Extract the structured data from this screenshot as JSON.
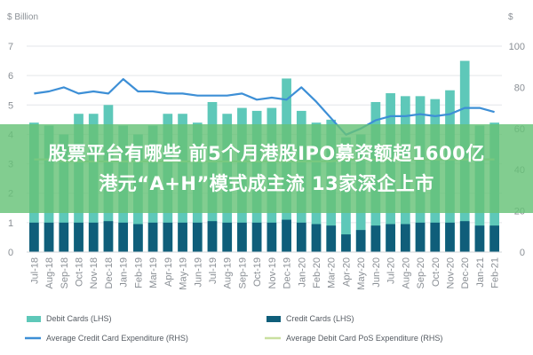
{
  "chart_data": {
    "type": "bar",
    "left_axis_unit": "$ Billion",
    "right_axis_unit": "$",
    "left_ylim": [
      0,
      7
    ],
    "right_ylim": [
      0,
      100
    ],
    "left_ticks": [
      "0",
      "1",
      "2",
      "3",
      "4",
      "5",
      "6",
      "7"
    ],
    "right_ticks": [
      "0",
      "20",
      "40",
      "60",
      "80",
      "100"
    ],
    "grid": true,
    "legend_position": "bottom",
    "categories": [
      "Jul-18",
      "Aug-18",
      "Sep-18",
      "Oct-18",
      "Nov-18",
      "Dec-18",
      "Jan-19",
      "Feb-19",
      "Mar-19",
      "Apr-19",
      "May-19",
      "Jun-19",
      "Jul-19",
      "Aug-19",
      "Sep-19",
      "Oct-19",
      "Nov-19",
      "Dec-19",
      "Jan-20",
      "Feb-20",
      "Mar-20",
      "Apr-20",
      "May-20",
      "Jun-20",
      "Jul-20",
      "Aug-20",
      "Sep-20",
      "Oct-20",
      "Nov-20",
      "Dec-20",
      "Jan-21",
      "Feb-21"
    ],
    "series": [
      {
        "name": "Debit Cards (LHS)",
        "axis": "left",
        "kind": "bar",
        "color": "#5ec8b9",
        "values": [
          4.4,
          4.3,
          4.0,
          4.7,
          4.7,
          5.0,
          4.3,
          4.0,
          4.3,
          4.7,
          4.7,
          4.4,
          5.1,
          4.7,
          4.9,
          4.8,
          4.9,
          5.9,
          4.8,
          4.4,
          4.5,
          3.9,
          4.0,
          5.1,
          5.4,
          5.3,
          5.3,
          5.2,
          5.5,
          6.5,
          4.3,
          4.4
        ]
      },
      {
        "name": "Credit Cards (LHS)",
        "axis": "left",
        "kind": "bar",
        "color": "#0f5e7a",
        "values": [
          1.0,
          1.0,
          1.0,
          1.0,
          1.0,
          1.05,
          1.0,
          0.95,
          1.0,
          1.0,
          1.0,
          1.0,
          1.05,
          1.0,
          1.0,
          1.0,
          1.0,
          1.1,
          1.0,
          0.95,
          0.9,
          0.6,
          0.75,
          0.9,
          0.95,
          0.95,
          1.0,
          1.0,
          1.0,
          1.05,
          0.9,
          0.9
        ]
      },
      {
        "name": "Average Credit Card Expenditure (RHS)",
        "axis": "right",
        "kind": "line",
        "color": "#3d8fd6",
        "values": [
          77,
          78,
          80,
          77,
          78,
          77,
          84,
          78,
          78,
          77,
          77,
          76,
          76,
          76,
          77,
          74,
          75,
          74,
          80,
          73,
          65,
          57,
          60,
          64,
          66,
          66,
          67,
          66,
          67,
          70,
          70,
          68
        ]
      },
      {
        "name": "Average Debit Card PoS Expenditure (RHS)",
        "axis": "right",
        "kind": "line",
        "color": "#c9e0a0",
        "values": [
          45,
          45,
          44,
          44,
          44,
          44,
          44,
          44,
          44,
          44,
          44,
          44,
          44,
          44,
          44,
          44,
          44,
          44,
          44,
          44,
          44,
          45,
          45,
          45,
          45,
          45,
          45,
          45,
          45,
          45,
          45,
          45
        ]
      }
    ]
  },
  "headline": {
    "line1": "股票平台有哪些 前5个月港股IPO募资额超1600亿",
    "line2": "港元“A+H”模式成主流 13家深企上市"
  }
}
